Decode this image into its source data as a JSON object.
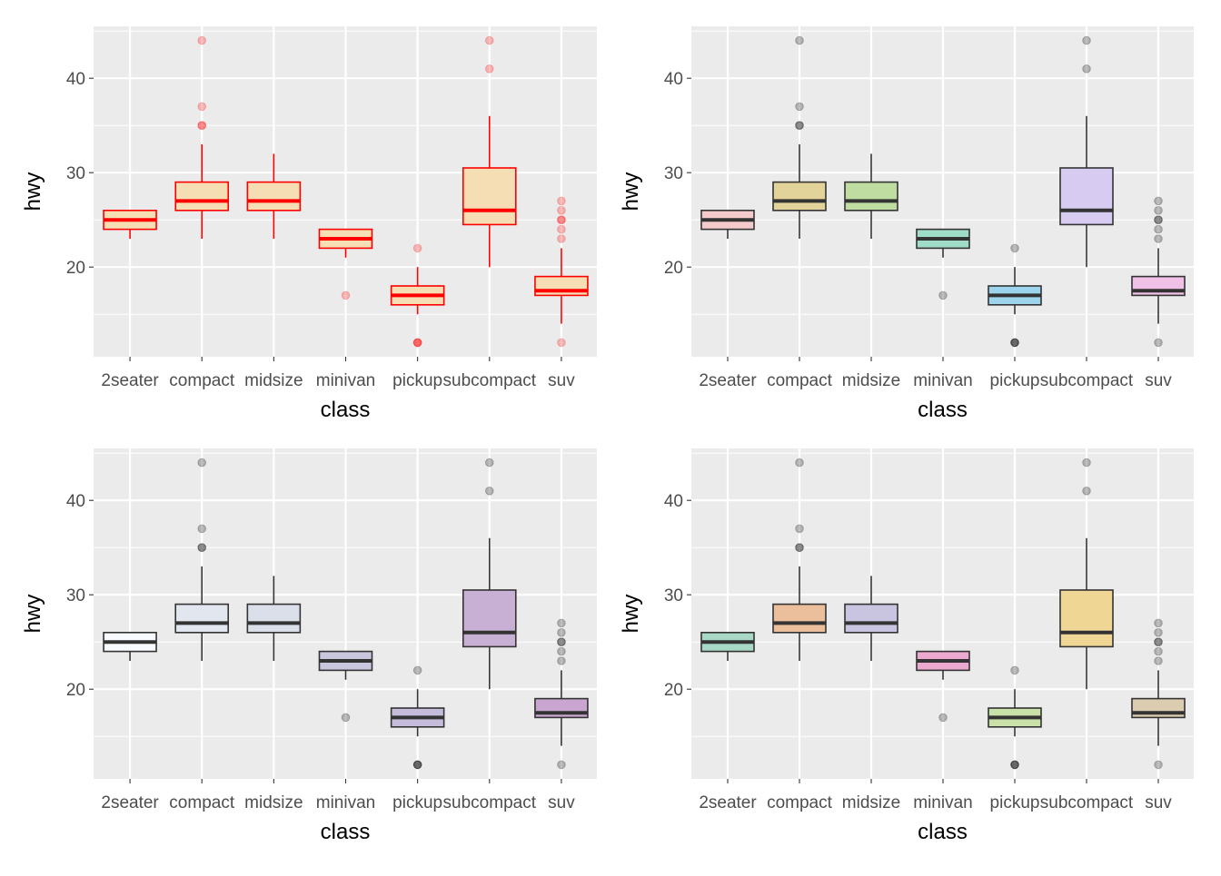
{
  "chart_data": {
    "type": "boxplot",
    "layout": "2x2 grid",
    "xlabel": "class",
    "ylabel": "hwy",
    "categories": [
      "2seater",
      "compact",
      "midsize",
      "minivan",
      "pickup",
      "subcompact",
      "suv"
    ],
    "ylim": [
      10.5,
      45.5
    ],
    "yticks": [
      20,
      30,
      40
    ],
    "grid": true,
    "boxes": [
      {
        "category": "2seater",
        "lower_whisker": 23,
        "q1": 24,
        "median": 25,
        "q3": 26,
        "upper_whisker": 26,
        "outliers": []
      },
      {
        "category": "compact",
        "lower_whisker": 23,
        "q1": 26,
        "median": 27,
        "q3": 29,
        "upper_whisker": 33,
        "outliers": [
          35,
          37,
          35,
          44
        ]
      },
      {
        "category": "midsize",
        "lower_whisker": 23,
        "q1": 26,
        "median": 27,
        "q3": 29,
        "upper_whisker": 32,
        "outliers": []
      },
      {
        "category": "minivan",
        "lower_whisker": 21,
        "q1": 22,
        "median": 23,
        "q3": 24,
        "upper_whisker": 24,
        "outliers": [
          17
        ]
      },
      {
        "category": "pickup",
        "lower_whisker": 15,
        "q1": 16,
        "median": 17,
        "q3": 18,
        "upper_whisker": 20,
        "outliers": [
          12,
          12,
          12,
          22
        ]
      },
      {
        "category": "subcompact",
        "lower_whisker": 20,
        "q1": 24.5,
        "median": 26,
        "q3": 30.5,
        "upper_whisker": 36,
        "outliers": [
          44,
          41
        ]
      },
      {
        "category": "suv",
        "lower_whisker": 14,
        "q1": 17,
        "median": 17.5,
        "q3": 19,
        "upper_whisker": 22,
        "outliers": [
          12,
          23,
          24,
          25,
          25,
          26,
          27
        ]
      }
    ],
    "panels": [
      {
        "id": "top-left",
        "line_color": "#FF0000",
        "outlier_color": "#FF0000",
        "fills": [
          "#F5DEB3",
          "#F5DEB3",
          "#F5DEB3",
          "#F5DEB3",
          "#F5DEB3",
          "#F5DEB3",
          "#F5DEB3"
        ]
      },
      {
        "id": "top-right",
        "line_color": "#333333",
        "outlier_color": "#000000",
        "fills": [
          "#F4CACA",
          "#E2D39A",
          "#BFDDA0",
          "#9FDDC8",
          "#9CD4EE",
          "#D8CBF2",
          "#F1C0E6"
        ]
      },
      {
        "id": "bottom-left",
        "line_color": "#333333",
        "outlier_color": "#000000",
        "fills": [
          "#F7FBFF",
          "#E1E6EF",
          "#DADFEA",
          "#C8C7DE",
          "#C4BCDA",
          "#C8AFD4",
          "#C8A6CF"
        ]
      },
      {
        "id": "bottom-right",
        "line_color": "#333333",
        "outlier_color": "#000000",
        "fills": [
          "#A8D8C6",
          "#EBBF9C",
          "#C9C4E0",
          "#EBA9CF",
          "#C9E0A8",
          "#F0D695",
          "#DDCDB0"
        ]
      }
    ]
  }
}
